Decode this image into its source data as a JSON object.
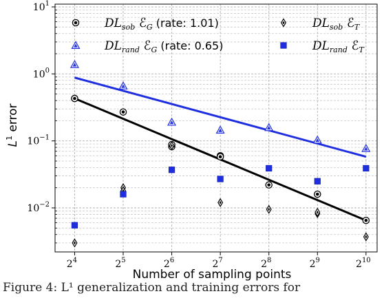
{
  "chart_data": {
    "type": "scatter",
    "xlabel": "Number of sampling points",
    "ylabel": "L¹ error",
    "x_scale": "log2",
    "y_scale": "log10",
    "xlim": [
      12.1,
      1200
    ],
    "ylim": [
      0.0022,
      11
    ],
    "grid": true,
    "legend_placement": "top",
    "x_ticks": [
      {
        "value": 16,
        "base": "2",
        "exp": "4"
      },
      {
        "value": 32,
        "base": "2",
        "exp": "5"
      },
      {
        "value": 64,
        "base": "2",
        "exp": "6"
      },
      {
        "value": 128,
        "base": "2",
        "exp": "7"
      },
      {
        "value": 256,
        "base": "2",
        "exp": "8"
      },
      {
        "value": 512,
        "base": "2",
        "exp": "9"
      },
      {
        "value": 1024,
        "base": "2",
        "exp": "10"
      }
    ],
    "y_ticks": [
      {
        "value": 0.01,
        "base": "10",
        "exp": "−2"
      },
      {
        "value": 0.1,
        "base": "10",
        "exp": "−1"
      },
      {
        "value": 1,
        "base": "10",
        "exp": "0"
      },
      {
        "value": 10,
        "base": "10",
        "exp": "1"
      }
    ],
    "x": [
      16,
      32,
      64,
      128,
      256,
      512,
      1024
    ],
    "series": [
      {
        "name": "DL_sob E_G",
        "legend_main": "DL",
        "legend_sub": "sob",
        "legend_E": "ℰ",
        "legend_Esub": "G",
        "legend_rate": "(rate:  1.01)",
        "marker": "circle-dot",
        "color": "#000000",
        "values": [
          [
            0.43,
            0.43
          ],
          [
            0.27
          ],
          [
            0.082,
            0.088
          ],
          [
            0.06,
            0.058
          ],
          [
            0.022
          ],
          [
            0.016
          ],
          [
            0.0065
          ]
        ]
      },
      {
        "name": "DL_rand E_G",
        "legend_main": "DL",
        "legend_sub": "rand",
        "legend_E": "ℰ",
        "legend_Esub": "G",
        "legend_rate": "(rate:  0.65)",
        "marker": "triangle",
        "color": "#1f2fe0",
        "values": [
          [
            1.38
          ],
          [
            0.66
          ],
          [
            0.19
          ],
          [
            0.145
          ],
          [
            0.158
          ],
          [
            0.103
          ],
          [
            0.077
          ]
        ]
      },
      {
        "name": "DL_sob E_T",
        "legend_main": "DL",
        "legend_sub": "sob",
        "legend_E": "ℰ",
        "legend_Esub": "T",
        "legend_rate": "",
        "marker": "diamond",
        "color": "#000000",
        "values": [
          [
            0.003
          ],
          [
            0.02,
            0.018
          ],
          [
            0.085
          ],
          [
            0.012
          ],
          [
            0.0095
          ],
          [
            0.0082,
            0.0086
          ],
          [
            0.0037
          ]
        ]
      },
      {
        "name": "DL_rand E_T",
        "legend_main": "DL",
        "legend_sub": "rand",
        "legend_E": "ℰ",
        "legend_Esub": "T",
        "legend_rate": "",
        "marker": "square",
        "color": "#1f2fe0",
        "values": [
          [
            0.0055
          ],
          [
            0.016
          ],
          [
            0.037
          ],
          [
            0.027
          ],
          [
            0.039
          ],
          [
            0.025
          ],
          [
            0.039
          ]
        ]
      }
    ],
    "fit_lines": [
      {
        "series": "DL_sob E_G",
        "color": "#000000",
        "from": [
          16,
          0.43
        ],
        "to": [
          1024,
          0.0065
        ]
      },
      {
        "series": "DL_rand E_G",
        "color": "#1f2fe0",
        "from": [
          16,
          0.88
        ],
        "to": [
          1024,
          0.058
        ]
      }
    ]
  },
  "caption": "Figure 4: L¹ generalization and training errors for"
}
